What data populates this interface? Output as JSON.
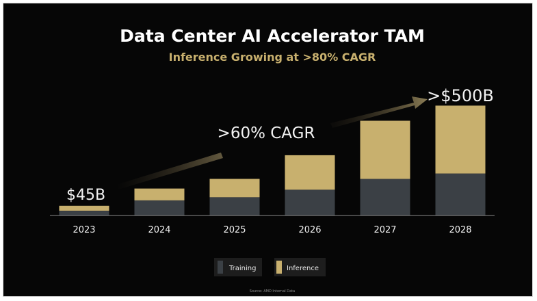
{
  "chart_data": {
    "type": "bar",
    "stacked": true,
    "title": "Data Center AI Accelerator TAM",
    "subtitle": "Inference Growing at >80% CAGR",
    "categories": [
      "2023",
      "2024",
      "2025",
      "2026",
      "2027",
      "2028"
    ],
    "series": [
      {
        "name": "Training",
        "color": "#3b4045",
        "values": [
          22,
          70,
          85,
          120,
          170,
          195
        ]
      },
      {
        "name": "Inference",
        "color": "#c8b06e",
        "values": [
          23,
          55,
          85,
          160,
          270,
          315
        ]
      }
    ],
    "ylim": [
      0,
      540
    ],
    "annotations": {
      "start_value": "$45B",
      "end_value": ">$500B",
      "overall_cagr": ">60% CAGR"
    },
    "grid": false,
    "legend_position": "bottom-center",
    "source": "Source: AMD Internal Data"
  },
  "colors": {
    "background": "#060606",
    "title": "#ffffff",
    "subtitle": "#c8b06e",
    "axis": "#8a8a8a",
    "label": "#f2f2f2"
  }
}
